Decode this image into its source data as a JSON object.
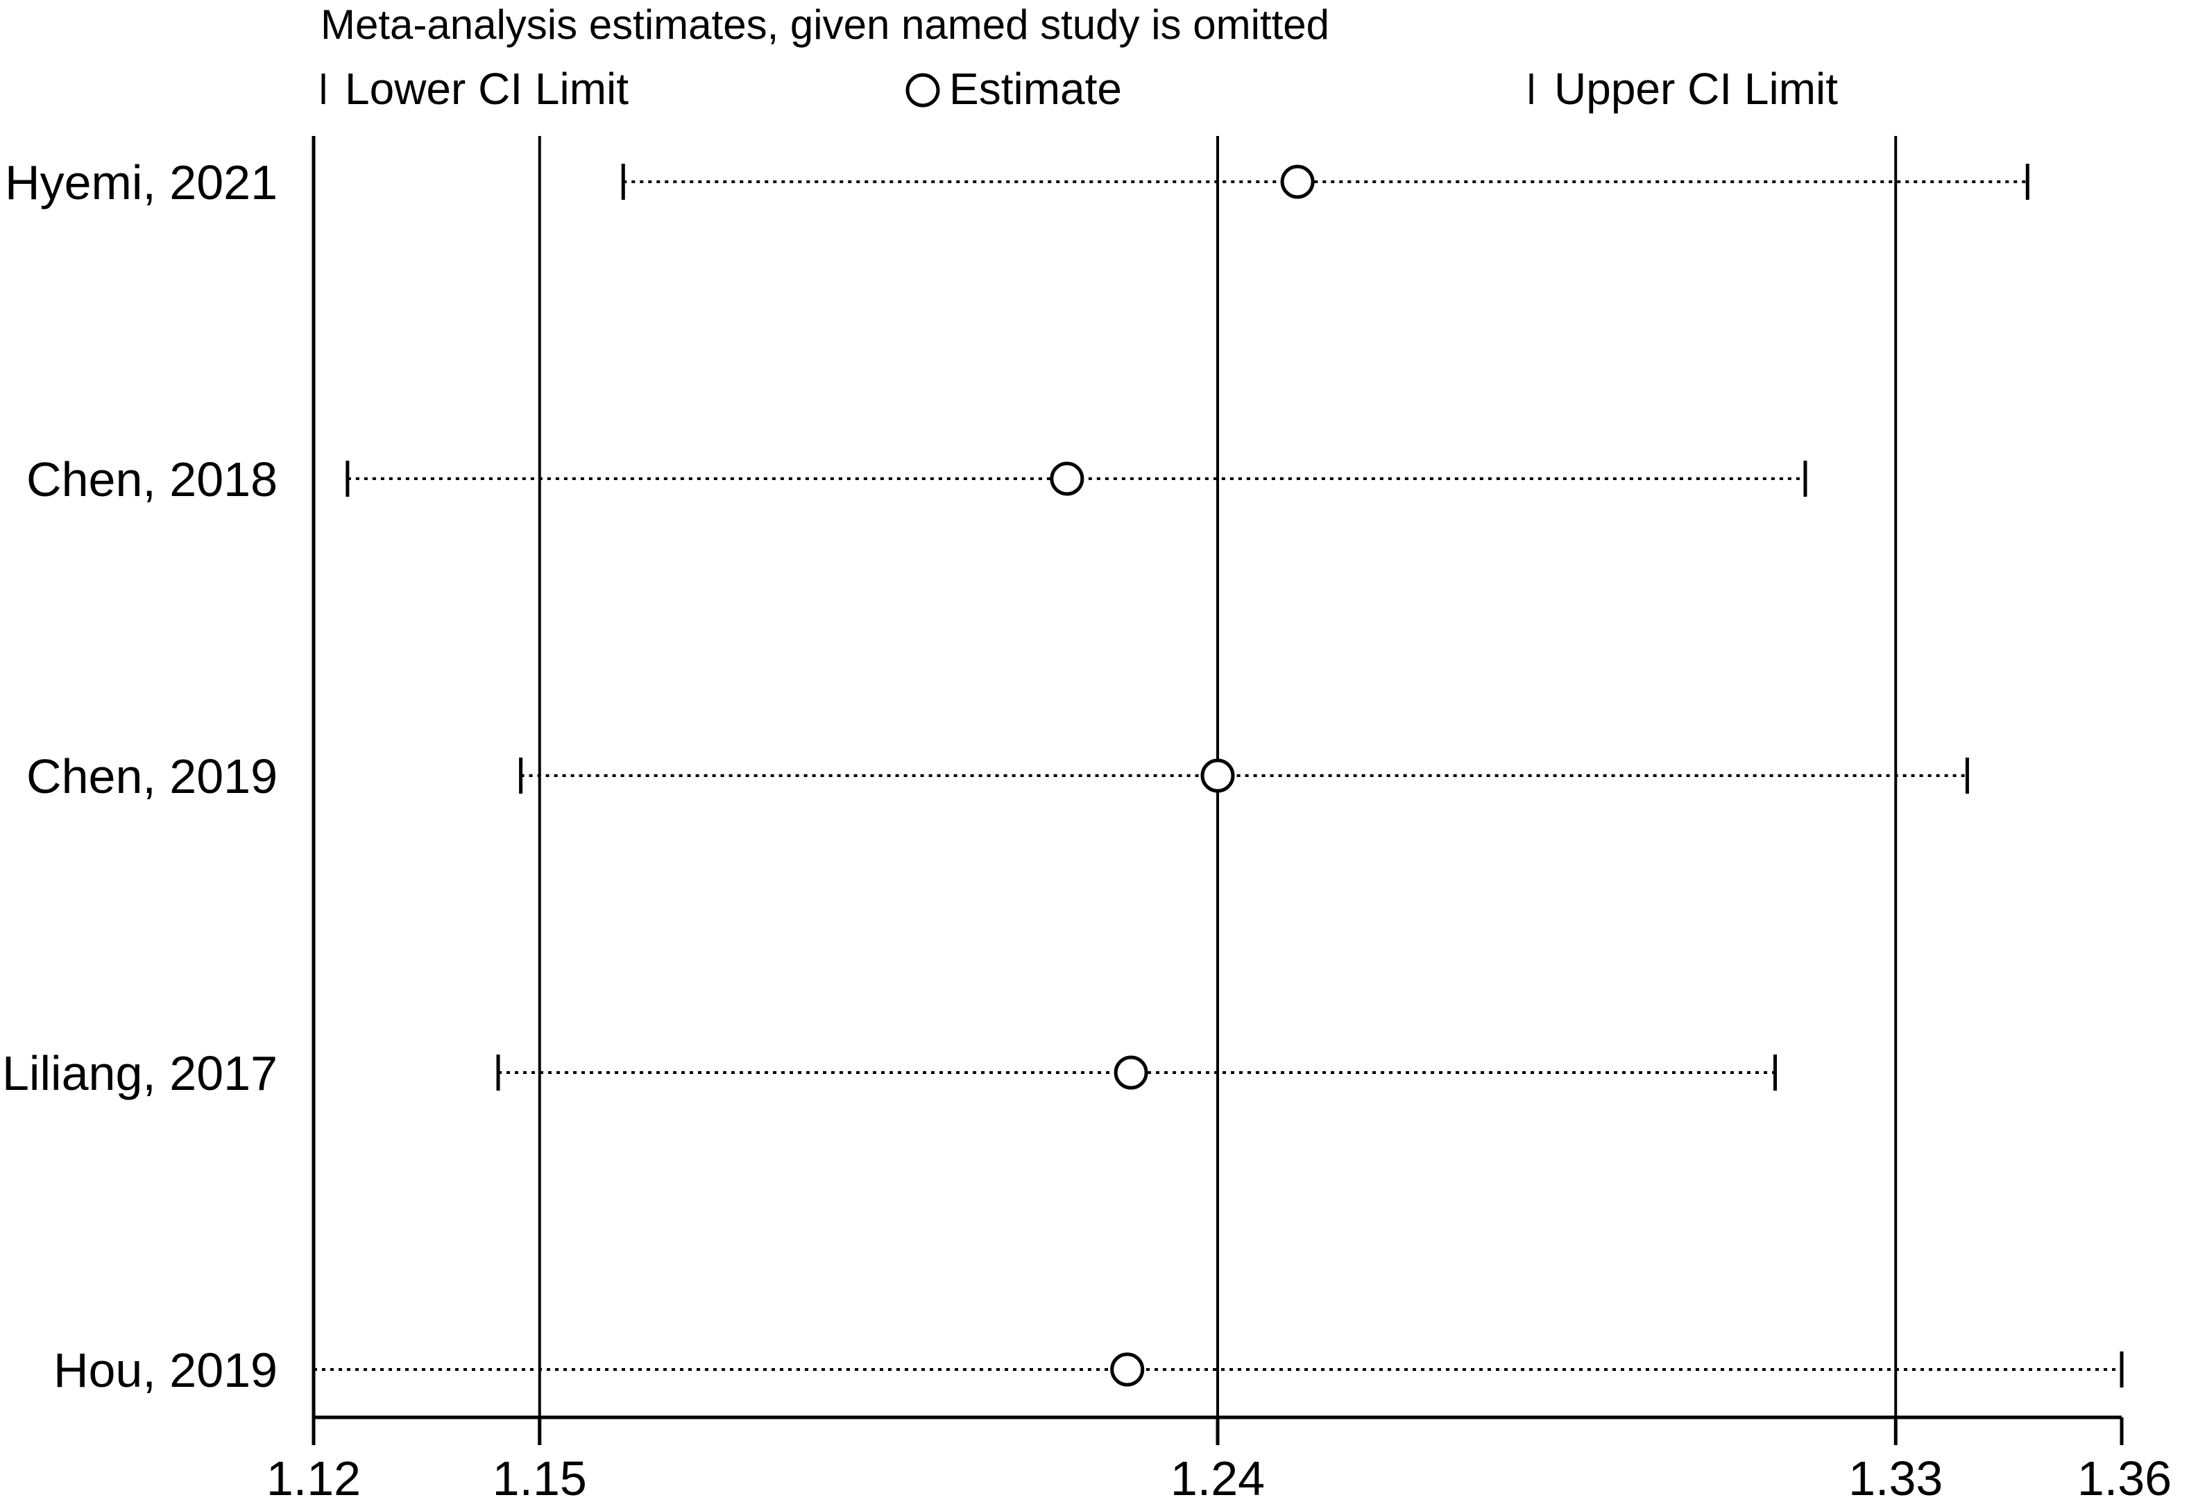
{
  "chart_data": {
    "type": "forest",
    "title": "Meta-analysis estimates, given named study is omitted",
    "legend": {
      "lower": "Lower CI Limit",
      "estimate": "Estimate",
      "upper": "Upper CI Limit",
      "placement": "top"
    },
    "xlim": [
      1.12,
      1.36
    ],
    "xticks": [
      1.12,
      1.15,
      1.24,
      1.33,
      1.36
    ],
    "xtick_labels": [
      "1.12",
      "1.15",
      "1.24",
      "1.33",
      "1.36"
    ],
    "reference_lines": [
      1.15,
      1.24,
      1.33
    ],
    "rows": [
      {
        "label": "Hyemi, 2021",
        "lower": 1.1611,
        "estimate": 1.2506,
        "upper": 1.3475
      },
      {
        "label": "Chen, 2018",
        "lower": 1.1245,
        "estimate": 1.22,
        "upper": 1.318
      },
      {
        "label": "Chen, 2019",
        "lower": 1.1475,
        "estimate": 1.24,
        "upper": 1.3395
      },
      {
        "label": "Liliang, 2017",
        "lower": 1.1445,
        "estimate": 1.2285,
        "upper": 1.314
      },
      {
        "label": "Hou, 2019",
        "lower": 1.12,
        "estimate": 1.228,
        "upper": 1.36
      }
    ],
    "grid": false
  }
}
